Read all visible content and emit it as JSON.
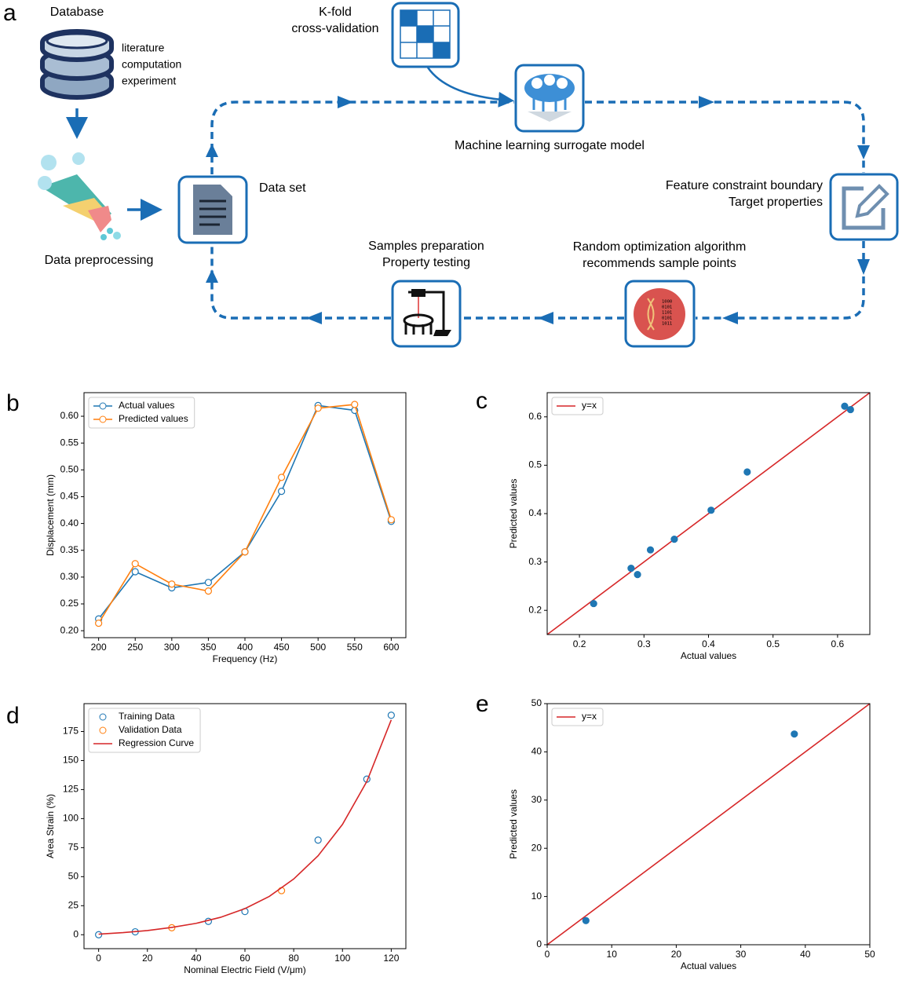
{
  "panel_labels": [
    "a",
    "b",
    "c",
    "d",
    "e"
  ],
  "diagram": {
    "database": {
      "title": "Database",
      "sources": [
        "literature",
        "computation",
        "experiment"
      ]
    },
    "kfold": [
      "K-fold",
      "cross-validation"
    ],
    "model": "Machine learning surrogate model",
    "dataset": "Data set",
    "preprocessing": "Data preprocessing",
    "constraints": [
      "Feature constraint boundary",
      "Target properties"
    ],
    "optimization": [
      "Random optimization algorithm",
      "recommends sample points"
    ],
    "dna_icon_text": [
      "1000",
      "0101",
      "1101",
      "0101",
      "1011"
    ],
    "testing": [
      "Samples preparation",
      "Property testing"
    ]
  },
  "chart_data": [
    {
      "type": "line",
      "x_label": "Frequency (Hz)",
      "y_label": "Displacement (mm)",
      "x": [
        200,
        250,
        300,
        350,
        400,
        450,
        500,
        550,
        600
      ],
      "series": [
        {
          "name": "Actual values",
          "color": "#1f77b4",
          "line": true,
          "marker": "open-circle",
          "values": [
            0.222,
            0.31,
            0.28,
            0.29,
            0.347,
            0.46,
            0.62,
            0.611,
            0.404
          ]
        },
        {
          "name": "Predicted values",
          "color": "#ff7f0e",
          "line": true,
          "marker": "open-circle",
          "values": [
            0.214,
            0.325,
            0.287,
            0.274,
            0.347,
            0.486,
            0.615,
            0.622,
            0.407
          ]
        }
      ],
      "xlim": [
        180,
        620
      ],
      "xticks": [
        200,
        250,
        300,
        350,
        400,
        450,
        500,
        550,
        600
      ],
      "ylim": [
        0.187,
        0.644
      ],
      "yticks": [
        {
          "value": 0.2,
          "label": "0.20"
        },
        0.25,
        {
          "value": 0.3,
          "label": "0.30"
        },
        0.35,
        {
          "value": 0.4,
          "label": "0.40"
        },
        0.45,
        {
          "value": 0.5,
          "label": "0.50"
        },
        0.55,
        {
          "value": 0.6,
          "label": "0.60"
        }
      ],
      "legend": "upper left"
    },
    {
      "type": "scatter",
      "x_label": "Actual values",
      "y_label": "Predicted values",
      "series": [
        {
          "name": "y=x",
          "color": "#d62728",
          "line": true,
          "marker": "none",
          "x": [
            0.15,
            0.65
          ],
          "values": [
            0.15,
            0.65
          ]
        },
        {
          "color": "#1f77b4",
          "line": false,
          "marker": "filled-circle",
          "x": [
            0.222,
            0.28,
            0.29,
            0.31,
            0.347,
            0.404,
            0.46,
            0.611,
            0.62
          ],
          "values": [
            0.214,
            0.287,
            0.274,
            0.325,
            0.347,
            0.407,
            0.486,
            0.622,
            0.615
          ]
        }
      ],
      "xlim": [
        0.15,
        0.65
      ],
      "xticks": [
        0.2,
        0.3,
        0.4,
        0.5,
        0.6
      ],
      "ylim": [
        0.15,
        0.65
      ],
      "yticks": [
        0.2,
        0.3,
        0.4,
        0.5,
        0.6
      ],
      "legend": "upper left"
    },
    {
      "type": "scatter",
      "x_label": "Nominal Electric Field (V/μm)",
      "y_label": "Area Strain (%)",
      "series": [
        {
          "name": "Training Data",
          "color": "#1f77b4",
          "line": false,
          "marker": "open-circle",
          "x": [
            0,
            15,
            45,
            60,
            90,
            110,
            120
          ],
          "values": [
            0,
            2.5,
            11.5,
            20,
            81.5,
            134,
            189
          ]
        },
        {
          "name": "Validation Data",
          "color": "#ff7f0e",
          "line": false,
          "marker": "open-circle",
          "x": [
            30,
            75
          ],
          "values": [
            6,
            38
          ]
        },
        {
          "name": "Regression Curve",
          "color": "#d62728",
          "line": true,
          "marker": "none",
          "x": [
            0,
            10,
            20,
            30,
            40,
            50,
            60,
            70,
            80,
            90,
            100,
            110,
            120
          ],
          "values": [
            0.5,
            1.8,
            3.6,
            6.3,
            9.8,
            15,
            22.5,
            33,
            48,
            68,
            95,
            132,
            185
          ]
        }
      ],
      "xlim": [
        -6,
        126
      ],
      "xticks": [
        0,
        20,
        40,
        60,
        80,
        100,
        120
      ],
      "ylim": [
        -12,
        199
      ],
      "yticks": [
        0,
        25,
        50,
        75,
        100,
        125,
        150,
        175
      ],
      "legend": "upper left"
    },
    {
      "type": "scatter",
      "x_label": "Actual values",
      "y_label": "Predicted values",
      "series": [
        {
          "name": "y=x",
          "color": "#d62728",
          "line": true,
          "marker": "none",
          "x": [
            0,
            50
          ],
          "values": [
            0,
            50
          ]
        },
        {
          "color": "#1f77b4",
          "line": false,
          "marker": "filled-circle",
          "x": [
            6,
            38.3
          ],
          "values": [
            5,
            43.7
          ]
        }
      ],
      "xlim": [
        0,
        50
      ],
      "xticks": [
        0,
        10,
        20,
        30,
        40,
        50
      ],
      "ylim": [
        0,
        50
      ],
      "yticks": [
        0,
        10,
        20,
        30,
        40,
        50
      ],
      "legend": "upper left"
    }
  ]
}
